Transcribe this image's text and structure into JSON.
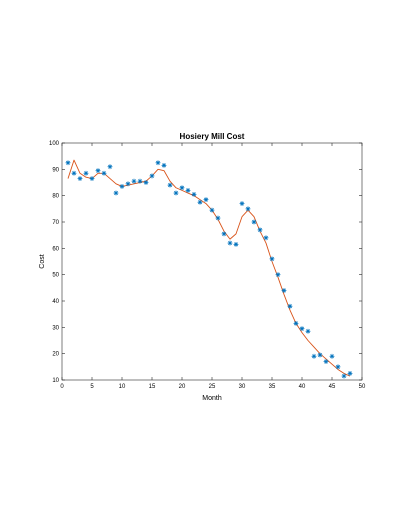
{
  "chart_data": {
    "type": "scatter",
    "title": "Hosiery Mill Cost",
    "xlabel": "Month",
    "ylabel": "Cost",
    "xlim": [
      0,
      50
    ],
    "ylim": [
      10,
      100
    ],
    "xticks": [
      0,
      5,
      10,
      15,
      20,
      25,
      30,
      35,
      40,
      45,
      50
    ],
    "yticks": [
      10,
      20,
      30,
      40,
      50,
      60,
      70,
      80,
      90,
      100
    ],
    "grid": false,
    "legend": "none",
    "series": [
      {
        "kind": "scatter",
        "marker": "asterisk",
        "color": "#0072BD",
        "x": [
          1,
          2,
          3,
          4,
          5,
          6,
          7,
          8,
          9,
          10,
          11,
          12,
          13,
          14,
          15,
          16,
          17,
          18,
          19,
          20,
          21,
          22,
          23,
          24,
          25,
          26,
          27,
          28,
          29,
          30,
          31,
          32,
          33,
          34,
          35,
          36,
          37,
          38,
          39,
          40,
          41,
          42,
          43,
          44,
          45,
          46,
          47,
          48
        ],
        "y": [
          92.5,
          88.5,
          86.5,
          88.5,
          86.5,
          89.5,
          88.5,
          91,
          81,
          83.5,
          84.5,
          85.5,
          85.5,
          85,
          87.5,
          92.5,
          91.5,
          84,
          81,
          83,
          82,
          80.5,
          77.5,
          78.5,
          74.5,
          71.5,
          65.5,
          62,
          61.5,
          77,
          75,
          70,
          67,
          64,
          56,
          50,
          44,
          38,
          31.5,
          29.5,
          28.5,
          19,
          19.5,
          17,
          19,
          15,
          11.5,
          12.5
        ]
      },
      {
        "kind": "line",
        "color": "#D95319",
        "x": [
          1,
          2,
          3,
          4,
          5,
          6,
          7,
          8,
          9,
          10,
          11,
          12,
          13,
          14,
          15,
          16,
          17,
          18,
          19,
          20,
          21,
          22,
          23,
          24,
          25,
          26,
          27,
          28,
          29,
          30,
          31,
          32,
          33,
          34,
          35,
          36,
          37,
          38,
          39,
          40,
          41,
          42,
          43,
          44,
          45,
          46,
          47,
          48
        ],
        "y": [
          86.5,
          93.5,
          88.5,
          87,
          86.5,
          88.5,
          88.5,
          86.5,
          84.5,
          83.5,
          84,
          84.5,
          85,
          85.5,
          87.5,
          90,
          89.5,
          85.5,
          83,
          82,
          81,
          80,
          78.5,
          77,
          74.5,
          71,
          66.5,
          63.5,
          65.5,
          72,
          74.5,
          72,
          66.5,
          62,
          55,
          49,
          42.5,
          36.5,
          31.5,
          28,
          25,
          22.5,
          20,
          18,
          16,
          14,
          12.5,
          11.5
        ]
      }
    ]
  }
}
